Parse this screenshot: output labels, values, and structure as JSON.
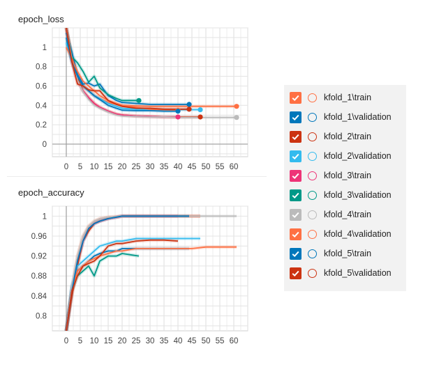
{
  "chart_data": [
    {
      "type": "line",
      "title": "epoch_loss",
      "xlim": [
        -5,
        65
      ],
      "ylim": [
        -0.13,
        1.2
      ],
      "xticks": [
        "0",
        "5",
        "10",
        "15",
        "20",
        "25",
        "30",
        "35",
        "40",
        "45",
        "50",
        "55",
        "60"
      ],
      "yticks": [
        "0",
        "0.2",
        "0.4",
        "0.6",
        "0.8",
        "1"
      ],
      "grid": true,
      "series": [
        {
          "name": "kfold_1\\train",
          "color": "#ff7043",
          "x": [
            0,
            2,
            4,
            6,
            8,
            10,
            12,
            15,
            18,
            20,
            25,
            30,
            35,
            40,
            45,
            50,
            55,
            61
          ],
          "y": [
            1.2,
            0.9,
            0.7,
            0.6,
            0.55,
            0.5,
            0.47,
            0.43,
            0.41,
            0.4,
            0.395,
            0.39,
            0.39,
            0.39,
            0.39,
            0.39,
            0.39,
            0.39
          ]
        },
        {
          "name": "kfold_1\\validation",
          "color": "#0077bb",
          "x": [
            0,
            2,
            4,
            6,
            8,
            10,
            12,
            15,
            18,
            20,
            25,
            30,
            35,
            40,
            44
          ],
          "y": [
            1.15,
            0.95,
            0.72,
            0.62,
            0.63,
            0.6,
            0.62,
            0.5,
            0.45,
            0.43,
            0.42,
            0.41,
            0.41,
            0.41,
            0.41
          ]
        },
        {
          "name": "kfold_2\\train",
          "color": "#cc3311",
          "x": [
            0,
            2,
            4,
            6,
            8,
            10,
            12,
            15,
            18,
            20,
            25,
            30,
            35,
            40,
            45,
            48
          ],
          "y": [
            1.2,
            0.9,
            0.68,
            0.55,
            0.48,
            0.42,
            0.38,
            0.34,
            0.31,
            0.3,
            0.29,
            0.285,
            0.28,
            0.28,
            0.28,
            0.28
          ]
        },
        {
          "name": "kfold_2\\validation",
          "color": "#33bbee",
          "x": [
            0,
            2,
            4,
            6,
            8,
            10,
            12,
            15,
            18,
            20,
            25,
            30,
            35,
            40,
            45,
            48
          ],
          "y": [
            1.05,
            0.85,
            0.7,
            0.6,
            0.55,
            0.5,
            0.47,
            0.42,
            0.39,
            0.37,
            0.36,
            0.36,
            0.355,
            0.355,
            0.355,
            0.355
          ]
        },
        {
          "name": "kfold_3\\train",
          "color": "#ee3377",
          "x": [
            0,
            2,
            4,
            6,
            8,
            10,
            12,
            15,
            18,
            20,
            25,
            30,
            35,
            40
          ],
          "y": [
            1.2,
            0.85,
            0.65,
            0.55,
            0.48,
            0.42,
            0.38,
            0.34,
            0.31,
            0.3,
            0.29,
            0.285,
            0.28,
            0.28
          ]
        },
        {
          "name": "kfold_3\\validation",
          "color": "#009988",
          "x": [
            0,
            2,
            4,
            6,
            8,
            10,
            12,
            15,
            18,
            20,
            26
          ],
          "y": [
            1.2,
            0.9,
            0.84,
            0.75,
            0.64,
            0.7,
            0.58,
            0.51,
            0.47,
            0.45,
            0.45
          ]
        },
        {
          "name": "kfold_4\\train",
          "color": "#bbbbbb",
          "x": [
            0,
            2,
            4,
            6,
            8,
            10,
            12,
            15,
            18,
            20,
            25,
            30,
            35,
            40,
            45,
            50,
            55,
            61
          ],
          "y": [
            1.2,
            0.88,
            0.66,
            0.54,
            0.46,
            0.4,
            0.37,
            0.33,
            0.3,
            0.29,
            0.285,
            0.28,
            0.28,
            0.275,
            0.275,
            0.275,
            0.275,
            0.275
          ]
        },
        {
          "name": "kfold_4\\validation",
          "color": "#ff7043",
          "x": [
            0,
            2,
            4,
            6,
            8,
            10,
            12,
            15,
            18,
            20,
            25,
            30,
            35,
            40
          ],
          "y": [
            1.0,
            0.88,
            0.75,
            0.65,
            0.6,
            0.55,
            0.5,
            0.45,
            0.42,
            0.4,
            0.38,
            0.36,
            0.355,
            0.35
          ]
        },
        {
          "name": "kfold_5\\train",
          "color": "#0077bb",
          "x": [
            0,
            2,
            4,
            6,
            8,
            10,
            12,
            15,
            18,
            20,
            25,
            30,
            35,
            40
          ],
          "y": [
            1.1,
            0.85,
            0.7,
            0.6,
            0.55,
            0.5,
            0.46,
            0.4,
            0.37,
            0.35,
            0.345,
            0.345,
            0.34,
            0.34
          ]
        },
        {
          "name": "kfold_5\\validation",
          "color": "#cc3311",
          "x": [
            0,
            2,
            4,
            6,
            8,
            10,
            12,
            15,
            18,
            20,
            25,
            30,
            35,
            40,
            44
          ],
          "y": [
            1.2,
            0.85,
            0.62,
            0.6,
            0.56,
            0.55,
            0.55,
            0.45,
            0.41,
            0.39,
            0.37,
            0.37,
            0.36,
            0.36,
            0.36
          ]
        }
      ]
    },
    {
      "type": "line",
      "title": "epoch_accuracy",
      "xlim": [
        -5,
        65
      ],
      "ylim": [
        0.77,
        1.02
      ],
      "xticks": [
        "0",
        "5",
        "10",
        "15",
        "20",
        "25",
        "30",
        "35",
        "40",
        "45",
        "50",
        "55",
        "60"
      ],
      "yticks": [
        "0.8",
        "0.84",
        "0.88",
        "0.92",
        "0.96",
        "1"
      ],
      "grid": true,
      "series": [
        {
          "name": "kfold_1\\train",
          "color": "#ff7043",
          "x": [
            0,
            2,
            4,
            6,
            8,
            10,
            12,
            15,
            18,
            20,
            25,
            30,
            35,
            40,
            45,
            48
          ],
          "y": [
            0.77,
            0.85,
            0.92,
            0.96,
            0.98,
            0.99,
            0.995,
            0.998,
            0.999,
            1.0,
            1.0,
            1.0,
            1.0,
            1.0,
            1.0,
            1.0
          ]
        },
        {
          "name": "kfold_1\\validation",
          "color": "#0077bb",
          "x": [
            0,
            2,
            4,
            6,
            8,
            10,
            12,
            15,
            18,
            20,
            25,
            30,
            35,
            40,
            44
          ],
          "y": [
            0.77,
            0.86,
            0.89,
            0.9,
            0.91,
            0.92,
            0.925,
            0.93,
            0.93,
            0.935,
            0.935,
            0.935,
            0.935,
            0.935,
            0.935
          ]
        },
        {
          "name": "kfold_2\\train",
          "color": "#cc3311",
          "x": [
            0,
            2,
            4,
            6,
            8,
            10,
            12,
            15,
            18,
            20,
            25,
            30,
            35,
            40,
            45,
            48
          ],
          "y": [
            0.77,
            0.84,
            0.9,
            0.95,
            0.97,
            0.985,
            0.99,
            0.995,
            0.998,
            1.0,
            1.0,
            1.0,
            1.0,
            1.0,
            1.0,
            1.0
          ]
        },
        {
          "name": "kfold_2\\validation",
          "color": "#33bbee",
          "x": [
            0,
            2,
            4,
            6,
            8,
            10,
            12,
            15,
            18,
            20,
            25,
            30,
            35,
            40,
            45,
            48
          ],
          "y": [
            0.77,
            0.86,
            0.9,
            0.91,
            0.92,
            0.93,
            0.94,
            0.945,
            0.95,
            0.95,
            0.955,
            0.955,
            0.955,
            0.955,
            0.955,
            0.955
          ]
        },
        {
          "name": "kfold_3\\train",
          "color": "#ee3377",
          "x": [
            0,
            2,
            4,
            6,
            8,
            10,
            12,
            15,
            18,
            20,
            25,
            30,
            35,
            40
          ],
          "y": [
            0.77,
            0.85,
            0.91,
            0.95,
            0.975,
            0.985,
            0.99,
            0.995,
            0.998,
            1.0,
            1.0,
            1.0,
            1.0,
            1.0
          ]
        },
        {
          "name": "kfold_3\\validation",
          "color": "#009988",
          "x": [
            0,
            2,
            4,
            6,
            8,
            10,
            12,
            15,
            18,
            20,
            26
          ],
          "y": [
            0.77,
            0.85,
            0.88,
            0.89,
            0.9,
            0.88,
            0.91,
            0.92,
            0.92,
            0.925,
            0.92
          ]
        },
        {
          "name": "kfold_4\\train",
          "color": "#bbbbbb",
          "x": [
            0,
            2,
            4,
            6,
            8,
            10,
            12,
            15,
            18,
            20,
            25,
            30,
            35,
            40,
            45,
            50,
            55,
            61
          ],
          "y": [
            0.77,
            0.86,
            0.92,
            0.96,
            0.98,
            0.99,
            0.995,
            0.998,
            0.999,
            1.0,
            1.0,
            1.0,
            1.0,
            1.0,
            1.0,
            1.0,
            1.0,
            1.0
          ]
        },
        {
          "name": "kfold_4\\validation",
          "color": "#ff7043",
          "x": [
            0,
            2,
            4,
            6,
            8,
            10,
            12,
            15,
            18,
            20,
            25,
            30,
            35,
            40,
            45,
            50,
            55,
            61
          ],
          "y": [
            0.77,
            0.85,
            0.89,
            0.9,
            0.91,
            0.915,
            0.92,
            0.925,
            0.93,
            0.93,
            0.935,
            0.935,
            0.935,
            0.935,
            0.935,
            0.938,
            0.938,
            0.938
          ]
        },
        {
          "name": "kfold_5\\train",
          "color": "#0077bb",
          "x": [
            0,
            2,
            4,
            6,
            8,
            10,
            12,
            15,
            18,
            20,
            25,
            30,
            35,
            40,
            44
          ],
          "y": [
            0.77,
            0.85,
            0.91,
            0.95,
            0.975,
            0.985,
            0.99,
            0.995,
            0.998,
            1.0,
            1.0,
            1.0,
            1.0,
            1.0,
            1.0
          ]
        },
        {
          "name": "kfold_5\\validation",
          "color": "#cc3311",
          "x": [
            0,
            2,
            4,
            6,
            8,
            10,
            12,
            15,
            18,
            20,
            25,
            30,
            35,
            40
          ],
          "y": [
            0.77,
            0.85,
            0.88,
            0.9,
            0.905,
            0.91,
            0.92,
            0.94,
            0.945,
            0.945,
            0.95,
            0.952,
            0.952,
            0.95
          ]
        }
      ]
    }
  ],
  "legend": {
    "items": [
      {
        "label": "kfold_1\\train",
        "color": "#ff7043"
      },
      {
        "label": "kfold_1\\validation",
        "color": "#0077bb"
      },
      {
        "label": "kfold_2\\train",
        "color": "#cc3311"
      },
      {
        "label": "kfold_2\\validation",
        "color": "#33bbee"
      },
      {
        "label": "kfold_3\\train",
        "color": "#ee3377"
      },
      {
        "label": "kfold_3\\validation",
        "color": "#009988"
      },
      {
        "label": "kfold_4\\train",
        "color": "#bbbbbb"
      },
      {
        "label": "kfold_4\\validation",
        "color": "#ff7043"
      },
      {
        "label": "kfold_5\\train",
        "color": "#0077bb"
      },
      {
        "label": "kfold_5\\validation",
        "color": "#cc3311"
      }
    ]
  }
}
